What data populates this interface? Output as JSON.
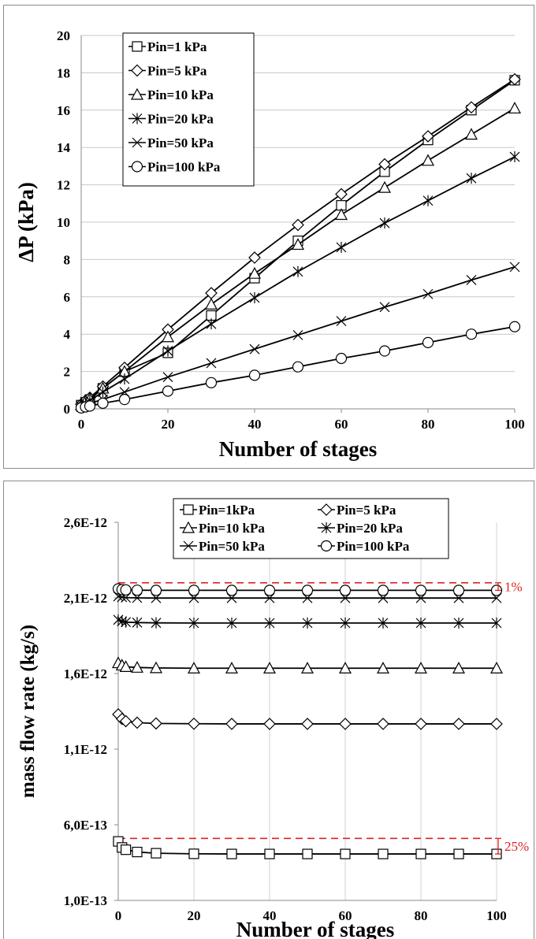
{
  "chart_data": [
    {
      "type": "line",
      "xlabel": "Number of stages",
      "ylabel": "ΔP (kPa)",
      "xlim": [
        0,
        100
      ],
      "ylim": [
        0,
        20
      ],
      "x_ticks": [
        0,
        20,
        40,
        60,
        80,
        100
      ],
      "y_ticks": [
        0,
        2,
        4,
        6,
        8,
        10,
        12,
        14,
        16,
        18,
        20
      ],
      "grid": "horizontal",
      "legend_position": "top-left",
      "series": [
        {
          "name": "Pin=1 kPa",
          "marker": "square",
          "x": [
            0,
            1,
            2,
            5,
            10,
            20,
            30,
            40,
            50,
            60,
            70,
            80,
            90,
            100
          ],
          "y": [
            0.2,
            0.35,
            0.5,
            1.1,
            2.0,
            3.0,
            5.0,
            7.0,
            9.0,
            10.9,
            12.7,
            14.4,
            16.0,
            17.6
          ]
        },
        {
          "name": "Pin=5 kPa",
          "marker": "diamond",
          "x": [
            0,
            1,
            2,
            5,
            10,
            20,
            30,
            40,
            50,
            60,
            70,
            80,
            90,
            100
          ],
          "y": [
            0.25,
            0.45,
            0.6,
            1.2,
            2.2,
            4.25,
            6.2,
            8.1,
            9.85,
            11.5,
            13.1,
            14.6,
            16.15,
            17.65
          ]
        },
        {
          "name": "Pin=10 kPa",
          "marker": "triangle",
          "x": [
            0,
            1,
            2,
            5,
            10,
            20,
            30,
            40,
            50,
            60,
            70,
            80,
            90,
            100
          ],
          "y": [
            0.2,
            0.4,
            0.55,
            1.1,
            2.0,
            3.85,
            5.6,
            7.25,
            8.8,
            10.4,
            11.85,
            13.3,
            14.7,
            16.1
          ]
        },
        {
          "name": "Pin=20 kPa",
          "marker": "asterisk",
          "x": [
            0,
            1,
            2,
            5,
            10,
            20,
            30,
            40,
            50,
            60,
            70,
            80,
            90,
            100
          ],
          "y": [
            0.15,
            0.3,
            0.45,
            0.9,
            1.6,
            3.1,
            4.55,
            5.95,
            7.35,
            8.65,
            9.95,
            11.15,
            12.35,
            13.5
          ]
        },
        {
          "name": "Pin=50 kPa",
          "marker": "x",
          "x": [
            0,
            1,
            2,
            5,
            10,
            20,
            30,
            40,
            50,
            60,
            70,
            80,
            90,
            100
          ],
          "y": [
            0.1,
            0.2,
            0.3,
            0.5,
            0.9,
            1.7,
            2.45,
            3.2,
            3.95,
            4.7,
            5.45,
            6.15,
            6.9,
            7.6
          ]
        },
        {
          "name": "Pin=100 kPa",
          "marker": "circle",
          "x": [
            0,
            1,
            2,
            5,
            10,
            20,
            30,
            40,
            50,
            60,
            70,
            80,
            90,
            100
          ],
          "y": [
            0.05,
            0.1,
            0.15,
            0.3,
            0.5,
            0.95,
            1.4,
            1.8,
            2.25,
            2.7,
            3.1,
            3.55,
            4.0,
            4.4
          ]
        }
      ]
    },
    {
      "type": "line",
      "xlabel": "Number of stages",
      "ylabel": "mass flow rate (kg/s)",
      "xlim": [
        0,
        100
      ],
      "ylim": [
        1e-13,
        2.6e-12
      ],
      "x_ticks": [
        0,
        20,
        40,
        60,
        80,
        100
      ],
      "x_tick_labels": [
        "0",
        "20",
        "40",
        "60",
        "80",
        "100"
      ],
      "y_ticks": [
        1e-13,
        6e-13,
        1.1e-12,
        1.6e-12,
        2.1e-12,
        2.6e-12
      ],
      "y_tick_labels": [
        "1,0E-13",
        "6,0E-13",
        "1,1E-12",
        "1,6E-12",
        "2,1E-12",
        "2,6E-12"
      ],
      "grid": "vertical",
      "legend_position": "top-center",
      "series": [
        {
          "name": "Pin=1kPa",
          "marker": "square",
          "x": [
            0,
            1,
            2,
            5,
            10,
            20,
            30,
            40,
            50,
            60,
            70,
            80,
            90,
            100
          ],
          "y": [
            4.9e-13,
            4.5e-13,
            4.35e-13,
            4.2e-13,
            4.12e-13,
            4.08e-13,
            4.07e-13,
            4.07e-13,
            4.07e-13,
            4.07e-13,
            4.07e-13,
            4.07e-13,
            4.07e-13,
            4.07e-13
          ]
        },
        {
          "name": "Pin=5 kPa",
          "marker": "diamond",
          "x": [
            0,
            1,
            2,
            5,
            10,
            20,
            30,
            40,
            50,
            60,
            70,
            80,
            90,
            100
          ],
          "y": [
            1.33e-12,
            1.3e-12,
            1.285e-12,
            1.275e-12,
            1.27e-12,
            1.268e-12,
            1.267e-12,
            1.267e-12,
            1.267e-12,
            1.267e-12,
            1.267e-12,
            1.267e-12,
            1.267e-12,
            1.267e-12
          ]
        },
        {
          "name": "Pin=10 kPa",
          "marker": "triangle",
          "x": [
            0,
            1,
            2,
            5,
            10,
            20,
            30,
            40,
            50,
            60,
            70,
            80,
            90,
            100
          ],
          "y": [
            1.67e-12,
            1.655e-12,
            1.645e-12,
            1.64e-12,
            1.637e-12,
            1.635e-12,
            1.635e-12,
            1.635e-12,
            1.635e-12,
            1.635e-12,
            1.635e-12,
            1.635e-12,
            1.635e-12,
            1.635e-12
          ]
        },
        {
          "name": "Pin=20 kPa",
          "marker": "asterisk",
          "x": [
            0,
            1,
            2,
            5,
            10,
            20,
            30,
            40,
            50,
            60,
            70,
            80,
            90,
            100
          ],
          "y": [
            1.955e-12,
            1.945e-12,
            1.94e-12,
            1.937e-12,
            1.935e-12,
            1.934e-12,
            1.934e-12,
            1.934e-12,
            1.934e-12,
            1.934e-12,
            1.934e-12,
            1.934e-12,
            1.934e-12,
            1.934e-12
          ]
        },
        {
          "name": "Pin=50 kPa",
          "marker": "x",
          "x": [
            0,
            1,
            2,
            5,
            10,
            20,
            30,
            40,
            50,
            60,
            70,
            80,
            90,
            100
          ],
          "y": [
            2.11e-12,
            2.105e-12,
            2.102e-12,
            2.1e-12,
            2.099e-12,
            2.099e-12,
            2.099e-12,
            2.099e-12,
            2.099e-12,
            2.099e-12,
            2.099e-12,
            2.099e-12,
            2.099e-12,
            2.099e-12
          ]
        },
        {
          "name": "Pin=100 kPa",
          "marker": "circle",
          "x": [
            0,
            1,
            2,
            5,
            10,
            20,
            30,
            40,
            50,
            60,
            70,
            80,
            90,
            100
          ],
          "y": [
            2.16e-12,
            2.155e-12,
            2.153e-12,
            2.151e-12,
            2.15e-12,
            2.15e-12,
            2.15e-12,
            2.15e-12,
            2.15e-12,
            2.15e-12,
            2.15e-12,
            2.15e-12,
            2.15e-12,
            2.15e-12
          ]
        }
      ],
      "reference_lines": [
        {
          "y": 2.2e-12,
          "color": "#e02020",
          "style": "dashed"
        },
        {
          "y": 5.1e-13,
          "color": "#e02020",
          "style": "dashed"
        }
      ],
      "annotations": [
        {
          "text": "1%",
          "color": "#e02020"
        },
        {
          "text": "25%",
          "color": "#e02020"
        }
      ]
    }
  ]
}
